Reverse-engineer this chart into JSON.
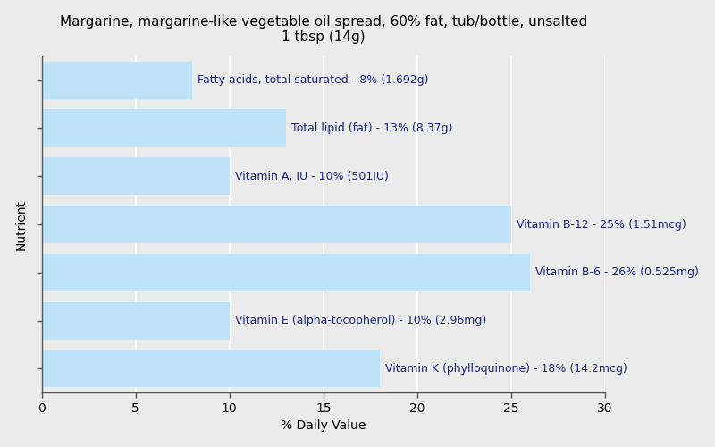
{
  "title_line1": "Margarine, margarine-like vegetable oil spread, 60% fat, tub/bottle, unsalted",
  "title_line2": "1 tbsp (14g)",
  "nutrients": [
    "Fatty acids, total saturated - 8% (1.692g)",
    "Total lipid (fat) - 13% (8.37g)",
    "Vitamin A, IU - 10% (501IU)",
    "Vitamin B-12 - 25% (1.51mcg)",
    "Vitamin B-6 - 26% (0.525mg)",
    "Vitamin E (alpha-tocopherol) - 10% (2.96mg)",
    "Vitamin K (phylloquinone) - 18% (14.2mcg)"
  ],
  "values": [
    8,
    13,
    10,
    25,
    26,
    10,
    18
  ],
  "bar_color": "#bee3f8",
  "background_color": "#ebebeb",
  "text_color": "#1a237e",
  "xlabel": "% Daily Value",
  "ylabel": "Nutrient",
  "xlim": [
    0,
    30
  ],
  "xticks": [
    0,
    5,
    10,
    15,
    20,
    25,
    30
  ],
  "title_fontsize": 11,
  "label_fontsize": 9,
  "axis_fontsize": 10,
  "bar_height": 0.78,
  "grid_color": "#ffffff"
}
